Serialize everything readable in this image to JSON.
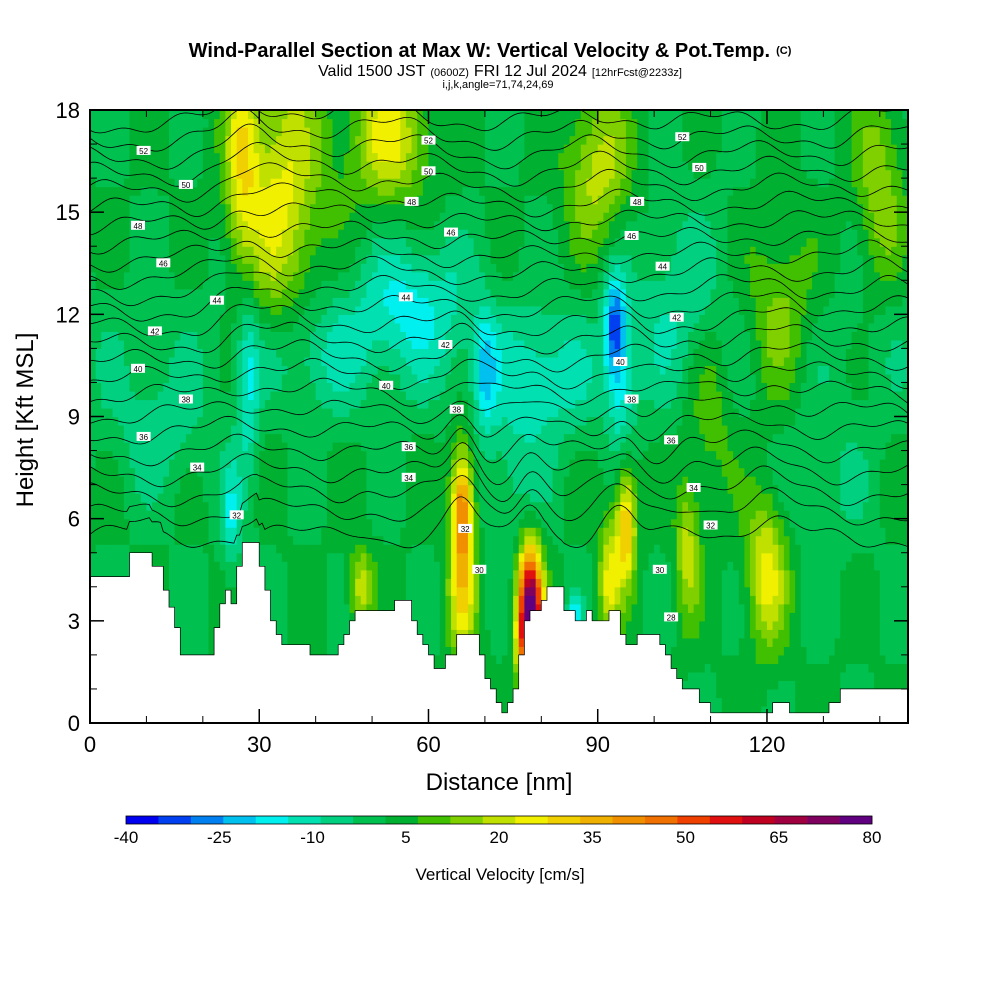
{
  "title": "Wind-Parallel Section at Max W: Vertical Velocity & Pot.Temp.",
  "title_mark": "(C)",
  "subtitle": {
    "valid_prefix": "Valid 1500 JST",
    "utc": "(0600Z)",
    "date": "FRI 12 Jul 2024",
    "forecast": "[12hrFcst@2233z]"
  },
  "subtitle2": "i,j,k,angle=71,74,24,69",
  "chart_data": {
    "type": "heatmap",
    "xlabel": "Distance [nm]",
    "ylabel": "Height [Kft MSL]",
    "xlim": [
      0,
      145
    ],
    "ylim": [
      0,
      18
    ],
    "x_ticks": [
      "0",
      "30",
      "60",
      "90",
      "120"
    ],
    "y_ticks": [
      "0",
      "3",
      "6",
      "9",
      "12",
      "15",
      "18"
    ],
    "background_w": 2,
    "updrafts": [
      {
        "x": 66,
        "y": 6.2,
        "w": 45,
        "sx": 1.4,
        "sy": 1.3
      },
      {
        "x": 66,
        "y": 3.5,
        "w": 20,
        "sx": 1.8,
        "sy": 1.2
      },
      {
        "x": 78,
        "y": 3.6,
        "w": 68,
        "sx": 1.5,
        "sy": 1.2
      },
      {
        "x": 78,
        "y": 2.3,
        "w": 45,
        "sx": 1.5,
        "sy": 0.8
      },
      {
        "x": 95,
        "y": 5.8,
        "w": 32,
        "sx": 1.3,
        "sy": 1.2
      },
      {
        "x": 92,
        "y": 4.2,
        "w": 22,
        "sx": 1.3,
        "sy": 1.2
      },
      {
        "x": 120,
        "y": 4.5,
        "w": 23,
        "sx": 2.5,
        "sy": 1.6
      },
      {
        "x": 106,
        "y": 5.0,
        "w": 18,
        "sx": 1.5,
        "sy": 1.4
      },
      {
        "x": 34,
        "y": 15.5,
        "w": 22,
        "sx": 5,
        "sy": 2.8
      },
      {
        "x": 27,
        "y": 16.5,
        "w": 20,
        "sx": 2,
        "sy": 2.2
      },
      {
        "x": 53,
        "y": 17.2,
        "w": 22,
        "sx": 5,
        "sy": 1.4
      },
      {
        "x": 90,
        "y": 16.3,
        "w": 18,
        "sx": 4,
        "sy": 1.6
      },
      {
        "x": 140,
        "y": 15.8,
        "w": 14,
        "sx": 3,
        "sy": 2
      },
      {
        "x": 122,
        "y": 12.0,
        "w": 14,
        "sx": 4,
        "sy": 1.8
      },
      {
        "x": 48,
        "y": 4.0,
        "w": 20,
        "sx": 1.5,
        "sy": 0.8
      },
      {
        "x": 110,
        "y": 9.5,
        "w": 10,
        "sx": 3,
        "sy": 2
      }
    ],
    "downdrafts": [
      {
        "x": 57,
        "y": 12.3,
        "w": -16,
        "sx": 7,
        "sy": 1.4
      },
      {
        "x": 80,
        "y": 10.0,
        "w": -13,
        "sx": 6,
        "sy": 1.3
      },
      {
        "x": 93,
        "y": 11.8,
        "w": -26,
        "sx": 1.3,
        "sy": 1.0
      },
      {
        "x": 94,
        "y": 10.0,
        "w": -16,
        "sx": 1.8,
        "sy": 1.4
      },
      {
        "x": 28,
        "y": 10.0,
        "w": -15,
        "sx": 1.4,
        "sy": 2.2
      },
      {
        "x": 25,
        "y": 6.0,
        "w": -15,
        "sx": 1.2,
        "sy": 1.2
      },
      {
        "x": 70,
        "y": 10.4,
        "w": -18,
        "sx": 1.5,
        "sy": 1.2
      },
      {
        "x": 86,
        "y": 3.0,
        "w": -20,
        "sx": 1.0,
        "sy": 0.5
      },
      {
        "x": 105,
        "y": 12.5,
        "w": -9,
        "sx": 6,
        "sy": 2
      },
      {
        "x": 12,
        "y": 8.5,
        "w": -8,
        "sx": 6,
        "sy": 1.3
      },
      {
        "x": 40,
        "y": 10.8,
        "w": -10,
        "sx": 6,
        "sy": 1.2
      },
      {
        "x": 75,
        "y": 7.0,
        "w": -8,
        "sx": 4,
        "sy": 1.5
      },
      {
        "x": 130,
        "y": 7.0,
        "w": -6,
        "sx": 6,
        "sy": 1.5
      }
    ],
    "terrain": [
      [
        0,
        4.3
      ],
      [
        7,
        4.3
      ],
      [
        7,
        5.0
      ],
      [
        11,
        5.0
      ],
      [
        11,
        4.6
      ],
      [
        13,
        4.6
      ],
      [
        13,
        3.9
      ],
      [
        14,
        3.9
      ],
      [
        14,
        3.4
      ],
      [
        15,
        3.4
      ],
      [
        15,
        2.8
      ],
      [
        16,
        2.8
      ],
      [
        16,
        2.3
      ],
      [
        16,
        2.0
      ],
      [
        22,
        2.0
      ],
      [
        22,
        2.8
      ],
      [
        23,
        2.8
      ],
      [
        23,
        3.5
      ],
      [
        24,
        3.5
      ],
      [
        24,
        3.9
      ],
      [
        25,
        3.9
      ],
      [
        25,
        3.5
      ],
      [
        26,
        3.5
      ],
      [
        26,
        4.6
      ],
      [
        27,
        4.6
      ],
      [
        27,
        5.3
      ],
      [
        30,
        5.3
      ],
      [
        30,
        4.6
      ],
      [
        31,
        4.6
      ],
      [
        31,
        3.9
      ],
      [
        32,
        3.9
      ],
      [
        32,
        3.0
      ],
      [
        33,
        3.0
      ],
      [
        33,
        2.6
      ],
      [
        34,
        2.6
      ],
      [
        34,
        2.3
      ],
      [
        39,
        2.3
      ],
      [
        39,
        2.0
      ],
      [
        44,
        2.0
      ],
      [
        44,
        2.3
      ],
      [
        45,
        2.3
      ],
      [
        45,
        2.6
      ],
      [
        46,
        2.6
      ],
      [
        46,
        3.0
      ],
      [
        47,
        3.0
      ],
      [
        47,
        3.3
      ],
      [
        54,
        3.3
      ],
      [
        54,
        3.6
      ],
      [
        57,
        3.6
      ],
      [
        57,
        3.0
      ],
      [
        58,
        3.0
      ],
      [
        58,
        2.6
      ],
      [
        59,
        2.6
      ],
      [
        59,
        2.3
      ],
      [
        60,
        2.3
      ],
      [
        60,
        2.0
      ],
      [
        61,
        2.0
      ],
      [
        61,
        1.6
      ],
      [
        63,
        1.6
      ],
      [
        63,
        2.0
      ],
      [
        65,
        2.0
      ],
      [
        65,
        2.6
      ],
      [
        69,
        2.6
      ],
      [
        69,
        2.0
      ],
      [
        70,
        2.0
      ],
      [
        70,
        1.3
      ],
      [
        71,
        1.3
      ],
      [
        71,
        1.0
      ],
      [
        72,
        1.0
      ],
      [
        72,
        0.6
      ],
      [
        73,
        0.6
      ],
      [
        73,
        0.3
      ],
      [
        74,
        0.3
      ],
      [
        74,
        0.6
      ],
      [
        75,
        0.6
      ],
      [
        75,
        1.0
      ],
      [
        76,
        1.0
      ],
      [
        76,
        2.0
      ],
      [
        77,
        2.0
      ],
      [
        77,
        3.0
      ],
      [
        78,
        3.0
      ],
      [
        78,
        3.3
      ],
      [
        80,
        3.3
      ],
      [
        80,
        3.6
      ],
      [
        81,
        3.6
      ],
      [
        81,
        4.0
      ],
      [
        84,
        4.0
      ],
      [
        84,
        3.3
      ],
      [
        86,
        3.3
      ],
      [
        86,
        3.0
      ],
      [
        88,
        3.0
      ],
      [
        88,
        3.3
      ],
      [
        89,
        3.3
      ],
      [
        89,
        3.0
      ],
      [
        92,
        3.0
      ],
      [
        92,
        3.3
      ],
      [
        94,
        3.3
      ],
      [
        94,
        2.6
      ],
      [
        95,
        2.6
      ],
      [
        95,
        2.3
      ],
      [
        97,
        2.3
      ],
      [
        97,
        2.6
      ],
      [
        101,
        2.6
      ],
      [
        101,
        2.3
      ],
      [
        102,
        2.3
      ],
      [
        102,
        2.0
      ],
      [
        103,
        2.0
      ],
      [
        103,
        1.6
      ],
      [
        104,
        1.6
      ],
      [
        104,
        1.3
      ],
      [
        105,
        1.3
      ],
      [
        105,
        1.0
      ],
      [
        108,
        1.0
      ],
      [
        108,
        0.6
      ],
      [
        110,
        0.6
      ],
      [
        110,
        0.3
      ],
      [
        121,
        0.3
      ],
      [
        121,
        0.6
      ],
      [
        124,
        0.6
      ],
      [
        124,
        0.3
      ],
      [
        131,
        0.3
      ],
      [
        131,
        0.6
      ],
      [
        133,
        0.6
      ],
      [
        133,
        1.0
      ],
      [
        145,
        1.0
      ]
    ],
    "isentrope_base": [
      5.4,
      6.1,
      6.7,
      7.3,
      7.9,
      8.5,
      9.05,
      9.6,
      10.1,
      10.6,
      11.1,
      11.6,
      12.1,
      12.6,
      13.1,
      13.6,
      14.1,
      14.6,
      15.1,
      15.6,
      16.1,
      16.6,
      17.1,
      17.6
    ],
    "contour_labels": [
      {
        "t": "52",
        "x": 9.5,
        "y": 16.8
      },
      {
        "t": "50",
        "x": 17,
        "y": 15.8
      },
      {
        "t": "48",
        "x": 8.5,
        "y": 14.6
      },
      {
        "t": "46",
        "x": 13,
        "y": 13.5
      },
      {
        "t": "44",
        "x": 22.5,
        "y": 12.4
      },
      {
        "t": "42",
        "x": 11.5,
        "y": 11.5
      },
      {
        "t": "40",
        "x": 8.5,
        "y": 10.4
      },
      {
        "t": "38",
        "x": 17,
        "y": 9.5
      },
      {
        "t": "36",
        "x": 9.5,
        "y": 8.4
      },
      {
        "t": "34",
        "x": 19,
        "y": 7.5
      },
      {
        "t": "32",
        "x": 26,
        "y": 6.1
      },
      {
        "t": "52",
        "x": 60,
        "y": 17.1
      },
      {
        "t": "50",
        "x": 60,
        "y": 16.2
      },
      {
        "t": "48",
        "x": 57,
        "y": 15.3
      },
      {
        "t": "46",
        "x": 64,
        "y": 14.4
      },
      {
        "t": "44",
        "x": 56,
        "y": 12.5
      },
      {
        "t": "42",
        "x": 63,
        "y": 11.1
      },
      {
        "t": "40",
        "x": 52.5,
        "y": 9.9
      },
      {
        "t": "38",
        "x": 65,
        "y": 9.2
      },
      {
        "t": "36",
        "x": 56.5,
        "y": 8.1
      },
      {
        "t": "34",
        "x": 56.5,
        "y": 7.2
      },
      {
        "t": "32",
        "x": 66.5,
        "y": 5.7
      },
      {
        "t": "30",
        "x": 69,
        "y": 4.5
      },
      {
        "t": "52",
        "x": 105,
        "y": 17.2
      },
      {
        "t": "50",
        "x": 108,
        "y": 16.3
      },
      {
        "t": "48",
        "x": 97,
        "y": 15.3
      },
      {
        "t": "46",
        "x": 96,
        "y": 14.3
      },
      {
        "t": "44",
        "x": 101.5,
        "y": 13.4
      },
      {
        "t": "42",
        "x": 104,
        "y": 11.9
      },
      {
        "t": "40",
        "x": 94,
        "y": 10.6
      },
      {
        "t": "38",
        "x": 96,
        "y": 9.5
      },
      {
        "t": "36",
        "x": 103,
        "y": 8.3
      },
      {
        "t": "34",
        "x": 107,
        "y": 6.9
      },
      {
        "t": "32",
        "x": 110,
        "y": 5.8
      },
      {
        "t": "30",
        "x": 101,
        "y": 4.5
      },
      {
        "t": "28",
        "x": 103,
        "y": 3.1
      }
    ],
    "colorbar": {
      "tick_labels": [
        "-40",
        "-25",
        "-10",
        "5",
        "20",
        "35",
        "50",
        "65",
        "80"
      ],
      "label": "Vertical Velocity [cm/s]",
      "colors": [
        "#0000f0",
        "#0040f0",
        "#0080f0",
        "#00c0f0",
        "#00f0f0",
        "#00e0b0",
        "#00d080",
        "#00c050",
        "#00b030",
        "#40c000",
        "#80d000",
        "#c0e000",
        "#f0f000",
        "#f0d000",
        "#f0b000",
        "#f09000",
        "#f07000",
        "#f04000",
        "#e01010",
        "#c00020",
        "#a00040",
        "#800060",
        "#600080"
      ]
    }
  }
}
